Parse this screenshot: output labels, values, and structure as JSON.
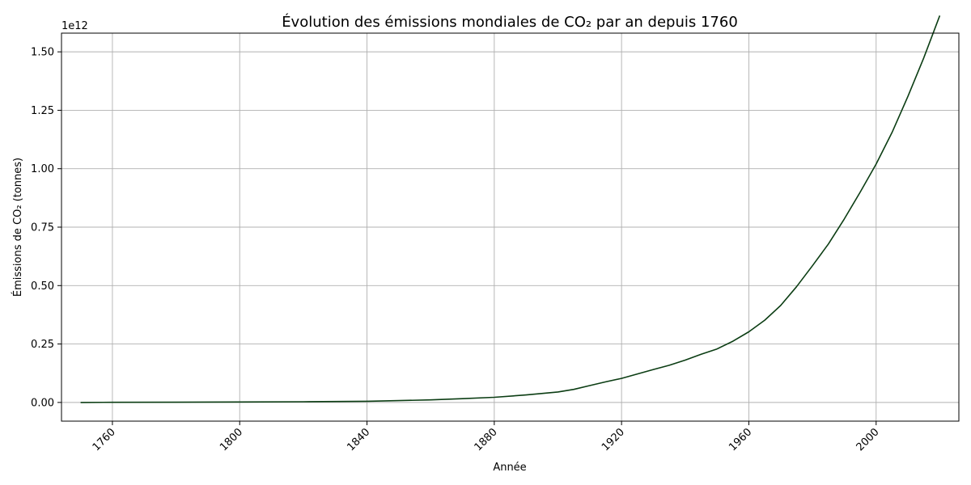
{
  "chart_data": {
    "type": "line",
    "title": "Évolution des émissions mondiales de CO₂ par an depuis 1760",
    "xlabel": "Année",
    "ylabel": "Émissions de CO₂ (tonnes)",
    "y_offset_label": "1e12",
    "xlim": [
      1744,
      2026
    ],
    "ylim": [
      -0.08,
      1.58
    ],
    "y_scale_factor": 1000000000000.0,
    "grid": true,
    "x_ticks": [
      1760,
      1800,
      1840,
      1880,
      1920,
      1960,
      2000
    ],
    "x_tick_labels": [
      "1760",
      "1800",
      "1840",
      "1880",
      "1920",
      "1960",
      "2000"
    ],
    "y_ticks": [
      0,
      0.25,
      0.5,
      0.75,
      1.0,
      1.25,
      1.5
    ],
    "y_tick_labels": [
      "0.00",
      "0.25",
      "0.50",
      "0.75",
      "1.00",
      "1.25",
      "1.50"
    ],
    "series": [
      {
        "color": "#0b3d13",
        "x": [
          1750,
          1760,
          1780,
          1800,
          1820,
          1840,
          1850,
          1860,
          1870,
          1880,
          1890,
          1900,
          1905,
          1910,
          1915,
          1920,
          1925,
          1930,
          1935,
          1940,
          1945,
          1950,
          1955,
          1960,
          1965,
          1970,
          1975,
          1980,
          1985,
          1990,
          1995,
          2000,
          2005,
          2010,
          2015,
          2020
        ],
        "y": [
          0.0,
          0.0005,
          0.001,
          0.002,
          0.003,
          0.005,
          0.008,
          0.011,
          0.016,
          0.022,
          0.032,
          0.045,
          0.056,
          0.072,
          0.088,
          0.103,
          0.122,
          0.141,
          0.159,
          0.181,
          0.206,
          0.229,
          0.262,
          0.302,
          0.352,
          0.415,
          0.495,
          0.585,
          0.678,
          0.785,
          0.9,
          1.02,
          1.155,
          1.31,
          1.475,
          1.655
        ]
      }
    ]
  }
}
